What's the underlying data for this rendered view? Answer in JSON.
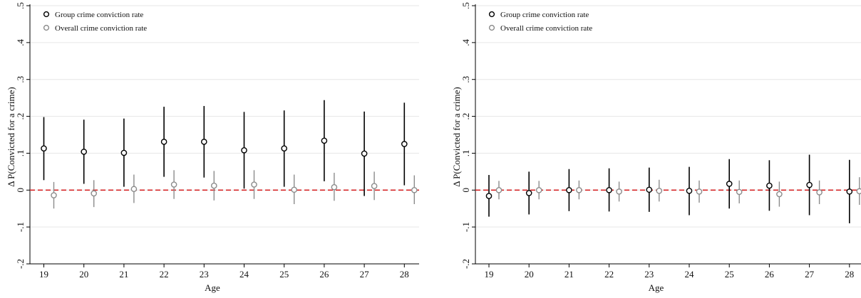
{
  "chart_data": [
    {
      "type": "scatter",
      "title": "",
      "xlabel": "Age",
      "ylabel": "Δ P(Convicted for a crime)",
      "ylim": [
        -0.2,
        0.5
      ],
      "yticks": [
        -0.2,
        -0.1,
        0,
        0.1,
        0.2,
        0.3,
        0.4,
        0.5
      ],
      "ytick_labels": [
        "-.2",
        "-.1",
        "0",
        ".1",
        ".2",
        ".3",
        ".4",
        ".5"
      ],
      "x": [
        19,
        20,
        21,
        22,
        23,
        24,
        25,
        26,
        27,
        28
      ],
      "grid": "horizontal",
      "legend": "top-left",
      "reference_line": {
        "y": 0,
        "style": "dashed",
        "color": "#d62728"
      },
      "series": [
        {
          "name": "Group crime conviction rate",
          "color": "#000000",
          "values": [
            0.113,
            0.104,
            0.101,
            0.131,
            0.131,
            0.108,
            0.113,
            0.134,
            0.099,
            0.125
          ],
          "ci_low": [
            0.027,
            0.017,
            0.009,
            0.036,
            0.034,
            0.004,
            0.009,
            0.024,
            -0.016,
            0.013
          ],
          "ci_high": [
            0.198,
            0.191,
            0.194,
            0.226,
            0.228,
            0.212,
            0.216,
            0.244,
            0.213,
            0.237
          ]
        },
        {
          "name": "Overall crime conviction rate",
          "color": "#8c8c8c",
          "values": [
            -0.014,
            -0.009,
            0.003,
            0.015,
            0.012,
            0.015,
            0.001,
            0.008,
            0.011,
            0.0
          ],
          "ci_low": [
            -0.05,
            -0.046,
            -0.035,
            -0.024,
            -0.028,
            -0.024,
            -0.038,
            -0.029,
            -0.027,
            -0.038
          ],
          "ci_high": [
            0.022,
            0.027,
            0.042,
            0.054,
            0.052,
            0.054,
            0.042,
            0.047,
            0.05,
            0.04
          ]
        }
      ]
    },
    {
      "type": "scatter",
      "title": "",
      "xlabel": "Age",
      "ylabel": "Δ P(Convicted for a crime)",
      "ylim": [
        -0.2,
        0.5
      ],
      "yticks": [
        -0.2,
        -0.1,
        0,
        0.1,
        0.2,
        0.3,
        0.4,
        0.5
      ],
      "ytick_labels": [
        "-.2",
        "-.1",
        "0",
        ".1",
        ".2",
        ".3",
        ".4",
        ".5"
      ],
      "x": [
        19,
        20,
        21,
        22,
        23,
        24,
        25,
        26,
        27,
        28
      ],
      "grid": "horizontal",
      "legend": "top-left",
      "reference_line": {
        "y": 0,
        "style": "dashed",
        "color": "#d62728"
      },
      "series": [
        {
          "name": "Group crime conviction rate",
          "color": "#000000",
          "values": [
            -0.016,
            -0.008,
            0.0,
            0.0,
            0.001,
            -0.002,
            0.017,
            0.012,
            0.014,
            -0.004
          ],
          "ci_low": [
            -0.072,
            -0.066,
            -0.057,
            -0.058,
            -0.059,
            -0.068,
            -0.05,
            -0.056,
            -0.068,
            -0.09
          ],
          "ci_high": [
            0.041,
            0.05,
            0.057,
            0.059,
            0.061,
            0.063,
            0.084,
            0.081,
            0.096,
            0.082
          ]
        },
        {
          "name": "Overall crime conviction rate",
          "color": "#8c8c8c",
          "values": [
            0.0,
            0.0,
            0.0,
            -0.004,
            -0.002,
            -0.004,
            -0.005,
            -0.011,
            -0.006,
            -0.003
          ],
          "ci_low": [
            -0.025,
            -0.025,
            -0.025,
            -0.031,
            -0.031,
            -0.034,
            -0.036,
            -0.045,
            -0.038,
            -0.04
          ],
          "ci_high": [
            0.025,
            0.025,
            0.026,
            0.023,
            0.028,
            0.026,
            0.026,
            0.023,
            0.026,
            0.035
          ]
        }
      ]
    }
  ]
}
